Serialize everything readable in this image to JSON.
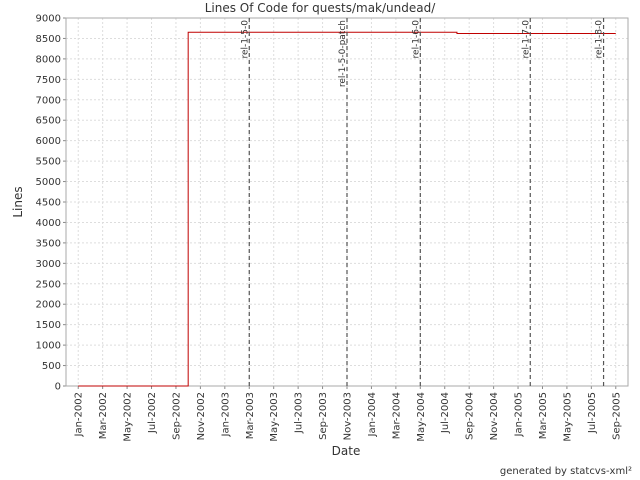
{
  "chart_data": {
    "type": "line",
    "title": "Lines Of Code for quests/mak/undead/",
    "x_label": "Date",
    "y_label": "Lines",
    "footer": "generated by statcvs-xml²",
    "xlim": [
      "2001-12",
      "2005-10"
    ],
    "xticks": [
      {
        "value": "2002-01",
        "label": "Jan-2002"
      },
      {
        "value": "2002-03",
        "label": "Mar-2002"
      },
      {
        "value": "2002-05",
        "label": "May-2002"
      },
      {
        "value": "2002-07",
        "label": "Jul-2002"
      },
      {
        "value": "2002-09",
        "label": "Sep-2002"
      },
      {
        "value": "2002-11",
        "label": "Nov-2002"
      },
      {
        "value": "2003-01",
        "label": "Jan-2003"
      },
      {
        "value": "2003-03",
        "label": "Mar-2003"
      },
      {
        "value": "2003-05",
        "label": "May-2003"
      },
      {
        "value": "2003-07",
        "label": "Jul-2003"
      },
      {
        "value": "2003-09",
        "label": "Sep-2003"
      },
      {
        "value": "2003-11",
        "label": "Nov-2003"
      },
      {
        "value": "2004-01",
        "label": "Jan-2004"
      },
      {
        "value": "2004-03",
        "label": "Mar-2004"
      },
      {
        "value": "2004-05",
        "label": "May-2004"
      },
      {
        "value": "2004-07",
        "label": "Jul-2004"
      },
      {
        "value": "2004-09",
        "label": "Sep-2004"
      },
      {
        "value": "2004-11",
        "label": "Nov-2004"
      },
      {
        "value": "2005-01",
        "label": "Jan-2005"
      },
      {
        "value": "2005-03",
        "label": "Mar-2005"
      },
      {
        "value": "2005-05",
        "label": "May-2005"
      },
      {
        "value": "2005-07",
        "label": "Jul-2005"
      },
      {
        "value": "2005-09",
        "label": "Sep-2005"
      }
    ],
    "ylim": [
      0,
      9000
    ],
    "yticks": [
      0,
      500,
      1000,
      1500,
      2000,
      2500,
      3000,
      3500,
      4000,
      4500,
      5000,
      5500,
      6000,
      6500,
      7000,
      7500,
      8000,
      8500,
      9000
    ],
    "grid": true,
    "series": [
      {
        "name": "Lines",
        "color": "#c00000",
        "x": [
          "2002-01",
          "2002-10",
          "2002-10",
          "2004-08",
          "2004-08",
          "2005-09"
        ],
        "values": [
          0,
          0,
          8650,
          8650,
          8620,
          8620
        ]
      }
    ],
    "markers": [
      {
        "label": "rel-1-5-0",
        "x": "2003-03"
      },
      {
        "label": "rel-1-5-0-patch",
        "x": "2003-11"
      },
      {
        "label": "rel-1-6-0",
        "x": "2004-05"
      },
      {
        "label": "rel-1-7-0",
        "x": "2005-02"
      },
      {
        "label": "rel-1-8-0",
        "x": "2005-08"
      }
    ],
    "marker_color": "#555555"
  }
}
